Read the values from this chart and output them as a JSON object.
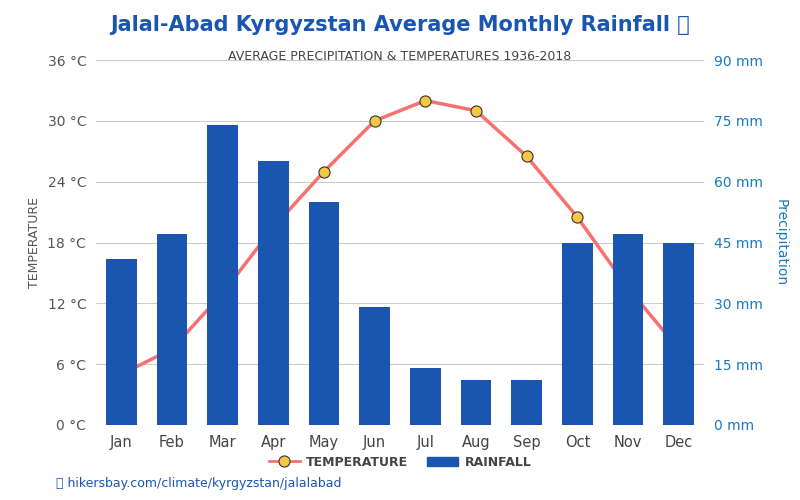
{
  "title": "Jalal-Abad Kyrgyzstan Average Monthly Rainfall 🌧",
  "subtitle": "AVERAGE PRECIPITATION & TEMPERATURES 1936-2018",
  "months": [
    "Jan",
    "Feb",
    "Mar",
    "Apr",
    "May",
    "Jun",
    "Jul",
    "Aug",
    "Sep",
    "Oct",
    "Nov",
    "Dec"
  ],
  "rainfall_mm": [
    41,
    47,
    74,
    65,
    55,
    29,
    14,
    11,
    11,
    45,
    47,
    45
  ],
  "temperature_c": [
    5.0,
    7.5,
    13.0,
    19.5,
    25.0,
    30.0,
    32.0,
    31.0,
    26.5,
    20.5,
    13.5,
    7.5
  ],
  "bar_color": "#1a56b0",
  "line_color": "#f87171",
  "marker_face": "#f5c842",
  "marker_edge": "#333333",
  "temp_label_color": "#555555",
  "precip_label_color": "#1a7abf",
  "title_color": "#1a56b0",
  "subtitle_color": "#444444",
  "left_yticks": [
    0,
    6,
    12,
    18,
    24,
    30,
    36
  ],
  "right_yticks": [
    0,
    15,
    30,
    45,
    60,
    75,
    90
  ],
  "ylim_temp": [
    0,
    36
  ],
  "ylim_rain": [
    0,
    90
  ],
  "footer_text": "hikersbay.com/climate/kyrgyzstan/jalalabad",
  "footer_color": "#1a56b0"
}
